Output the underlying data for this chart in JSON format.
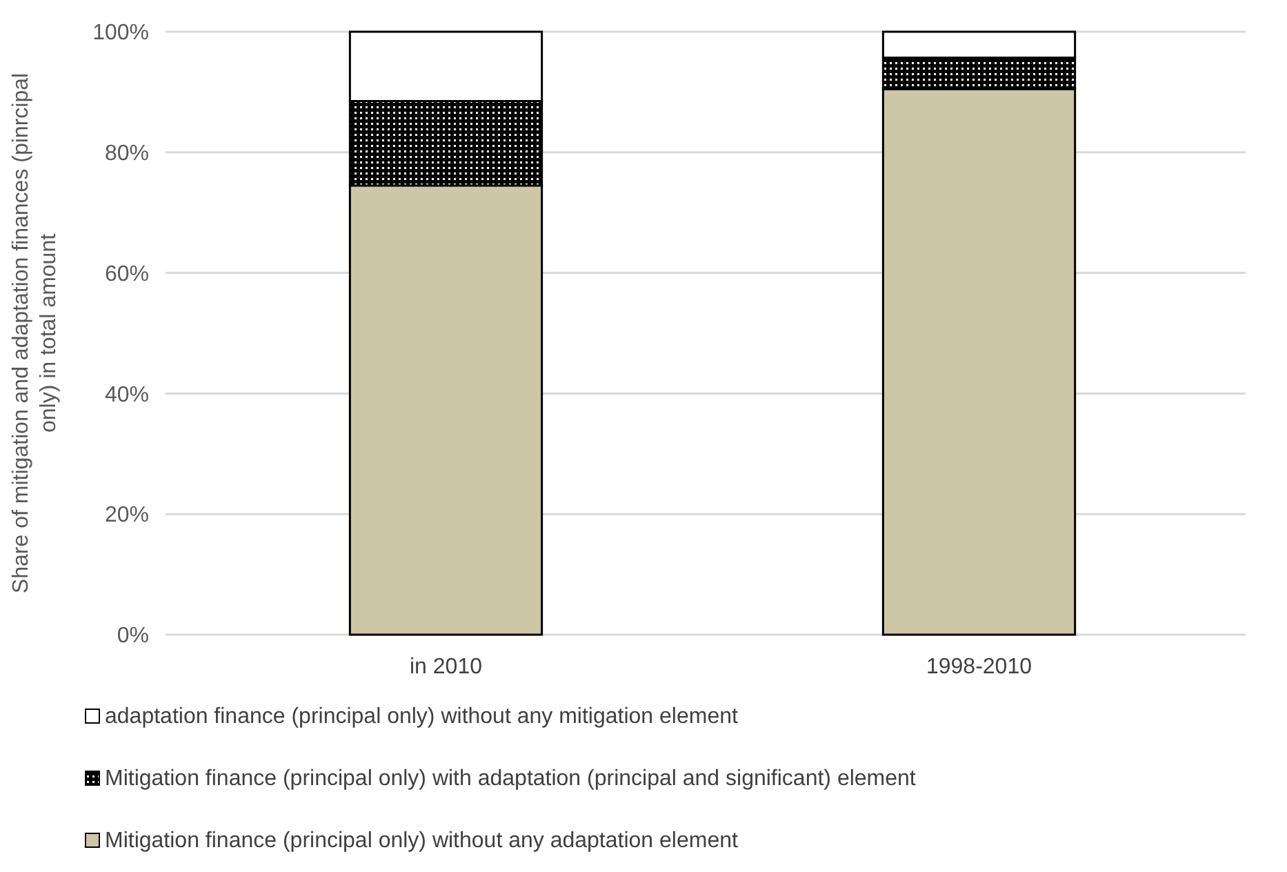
{
  "chart_data": {
    "type": "bar",
    "stacked": true,
    "ylabel": "Share of mitigation and adaptation finances (pinrcipal only) in total amount",
    "categories": [
      "in 2010",
      "1998-2010"
    ],
    "series": [
      {
        "name": "Mitigation finance (principal only) without any adaptation element",
        "color": "#cdc7a5",
        "values": [
          74.5,
          90.5
        ]
      },
      {
        "name": "Mitigation finance (principal only) with adaptation (principal and significant) element",
        "color": "#000000",
        "values": [
          14,
          5.2
        ]
      },
      {
        "name": "adaptation finance (principal only) without any mitigation element",
        "color": "#ffffff",
        "values": [
          11.5,
          4.3
        ]
      }
    ],
    "ylim": [
      0,
      100
    ],
    "yticks": [
      {
        "value": 0,
        "label": "0%"
      },
      {
        "value": 20,
        "label": "20%"
      },
      {
        "value": 40,
        "label": "40%"
      },
      {
        "value": 60,
        "label": "60%"
      },
      {
        "value": 80,
        "label": "80%"
      },
      {
        "value": 100,
        "label": "100%"
      }
    ],
    "grid": "y",
    "legend": "bottom"
  }
}
